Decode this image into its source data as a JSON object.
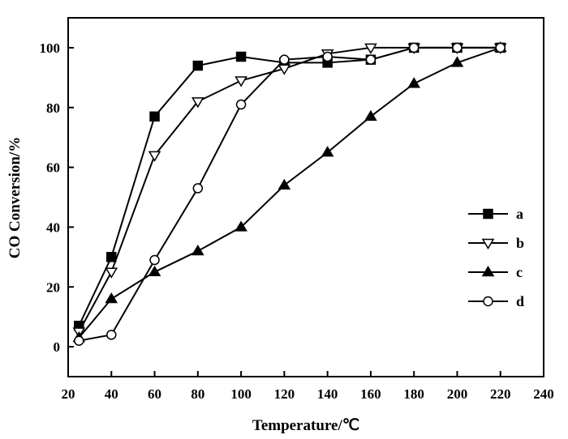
{
  "chart_data": {
    "type": "line",
    "xlabel": "Temperature/℃",
    "ylabel": "CO Conversion/%",
    "xlim": [
      20,
      240
    ],
    "ylim": [
      -10,
      110
    ],
    "xticks": [
      20,
      40,
      60,
      80,
      100,
      120,
      140,
      160,
      180,
      200,
      220,
      240
    ],
    "yticks": [
      0,
      20,
      40,
      60,
      80,
      100
    ],
    "legend_position": "right",
    "series": [
      {
        "name": "a",
        "marker": "square-filled",
        "x": [
          25,
          40,
          60,
          80,
          100,
          120,
          140,
          160,
          180,
          200,
          220
        ],
        "y": [
          7,
          30,
          77,
          94,
          97,
          95,
          95,
          96,
          100,
          100,
          100
        ]
      },
      {
        "name": "b",
        "marker": "triangle-down-open",
        "x": [
          25,
          40,
          60,
          80,
          100,
          120,
          140,
          160,
          180,
          200,
          220
        ],
        "y": [
          5,
          25,
          64,
          82,
          89,
          93,
          98,
          100,
          100,
          100,
          100
        ]
      },
      {
        "name": "c",
        "marker": "triangle-up-filled",
        "x": [
          25,
          40,
          60,
          80,
          100,
          120,
          140,
          160,
          180,
          200,
          220
        ],
        "y": [
          3,
          16,
          25,
          32,
          40,
          54,
          65,
          77,
          88,
          95,
          100
        ]
      },
      {
        "name": "d",
        "marker": "circle-open",
        "x": [
          25,
          40,
          60,
          80,
          100,
          120,
          140,
          160,
          180,
          200,
          220
        ],
        "y": [
          2,
          4,
          29,
          53,
          81,
          96,
          97,
          96,
          100,
          100,
          100
        ]
      }
    ]
  }
}
